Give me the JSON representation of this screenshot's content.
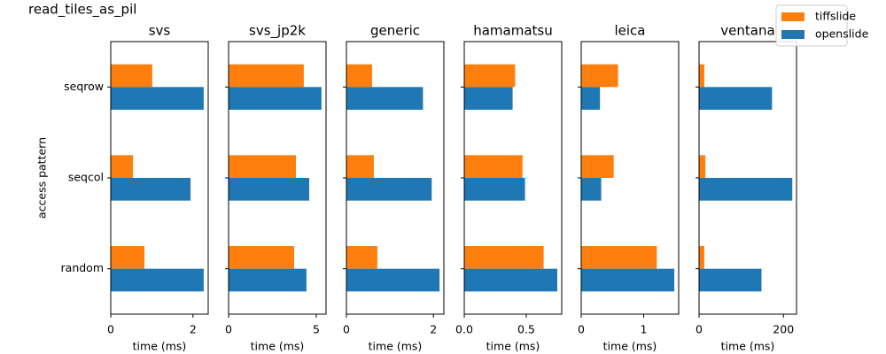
{
  "title": "read_tiles_as_pil",
  "chart_data": [
    {
      "type": "barh",
      "title": "svs",
      "ylabel": "access pattern",
      "xlabel": "time (ms)",
      "categories": [
        "random",
        "seqcol",
        "seqrow"
      ],
      "series": [
        {
          "name": "tiffslide",
          "color": "#ff7f0e",
          "values": [
            0.82,
            0.54,
            1.01
          ]
        },
        {
          "name": "openslide",
          "color": "#1f77b4",
          "values": [
            2.26,
            1.94,
            2.26
          ]
        }
      ],
      "xlim": [
        0,
        2.37
      ],
      "xticks": [
        0,
        2
      ]
    },
    {
      "type": "barh",
      "title": "svs_jp2k",
      "xlabel": "time (ms)",
      "categories": [
        "random",
        "seqcol",
        "seqrow"
      ],
      "series": [
        {
          "name": "tiffslide",
          "color": "#ff7f0e",
          "values": [
            3.74,
            3.84,
            4.29
          ]
        },
        {
          "name": "openslide",
          "color": "#1f77b4",
          "values": [
            4.44,
            4.6,
            5.3
          ]
        }
      ],
      "xlim": [
        0,
        5.56
      ],
      "xticks": [
        0,
        5
      ]
    },
    {
      "type": "barh",
      "title": "generic",
      "xlabel": "time (ms)",
      "categories": [
        "random",
        "seqcol",
        "seqrow"
      ],
      "series": [
        {
          "name": "tiffslide",
          "color": "#ff7f0e",
          "values": [
            0.71,
            0.63,
            0.59
          ]
        },
        {
          "name": "openslide",
          "color": "#1f77b4",
          "values": [
            2.14,
            1.96,
            1.76
          ]
        }
      ],
      "xlim": [
        0,
        2.24
      ],
      "xticks": [
        0,
        2
      ]
    },
    {
      "type": "barh",
      "title": "hamamatsu",
      "xlabel": "time (ms)",
      "categories": [
        "random",
        "seqcol",
        "seqrow"
      ],
      "series": [
        {
          "name": "tiffslide",
          "color": "#ff7f0e",
          "values": [
            0.64,
            0.47,
            0.41
          ]
        },
        {
          "name": "openslide",
          "color": "#1f77b4",
          "values": [
            0.75,
            0.49,
            0.39
          ]
        }
      ],
      "xlim": [
        0,
        0.786
      ],
      "xticks": [
        {
          "value": 0,
          "label": "0.0"
        },
        0.5
      ]
    },
    {
      "type": "barh",
      "title": "leica",
      "xlabel": "time (ms)",
      "categories": [
        "random",
        "seqcol",
        "seqrow"
      ],
      "series": [
        {
          "name": "tiffslide",
          "color": "#ff7f0e",
          "values": [
            1.21,
            0.52,
            0.59
          ]
        },
        {
          "name": "openslide",
          "color": "#1f77b4",
          "values": [
            1.49,
            0.32,
            0.3
          ]
        }
      ],
      "xlim": [
        0,
        1.56
      ],
      "xticks": [
        0,
        1
      ]
    },
    {
      "type": "barh",
      "title": "ventana",
      "xlabel": "time (ms)",
      "categories": [
        "random",
        "seqcol",
        "seqrow"
      ],
      "series": [
        {
          "name": "tiffslide",
          "color": "#ff7f0e",
          "values": [
            12.5,
            15,
            12.5
          ]
        },
        {
          "name": "openslide",
          "color": "#1f77b4",
          "values": [
            148,
            221,
            173
          ]
        }
      ],
      "xlim": [
        0,
        231
      ],
      "xticks": [
        0,
        200
      ]
    }
  ]
}
